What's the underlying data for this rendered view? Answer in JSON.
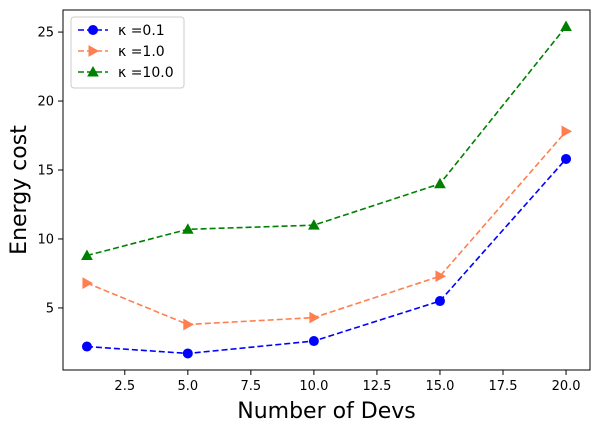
{
  "chart_data": {
    "type": "line",
    "title": "",
    "xlabel": "Number of Devs",
    "ylabel": "Energy cost",
    "xlim": [
      0.05,
      20.95
    ],
    "ylim": [
      0.5,
      26.6
    ],
    "grid": false,
    "legend_position": "top-left",
    "x": [
      1,
      5,
      10,
      15,
      20
    ],
    "xticks": [
      "2.5",
      "5.0",
      "7.5",
      "10.0",
      "12.5",
      "15.0",
      "17.5",
      "20.0"
    ],
    "xtick_values": [
      2.5,
      5.0,
      7.5,
      10.0,
      12.5,
      15.0,
      17.5,
      20.0
    ],
    "yticks": [
      "5",
      "10",
      "15",
      "20",
      "25"
    ],
    "ytick_values": [
      5,
      10,
      15,
      20,
      25
    ],
    "series": [
      {
        "name": "κ =0.1",
        "color": "#0000ff",
        "marker": "circle",
        "line_style": "dashed",
        "values": [
          2.2,
          1.7,
          2.6,
          5.5,
          15.8
        ]
      },
      {
        "name": "κ =1.0",
        "color": "#ff7f50",
        "marker": "triangle-right",
        "line_style": "dashed",
        "values": [
          6.8,
          3.8,
          4.3,
          7.3,
          17.8
        ]
      },
      {
        "name": "κ =10.0",
        "color": "#008000",
        "marker": "triangle-up",
        "line_style": "dashed",
        "values": [
          8.8,
          10.7,
          11.0,
          14.0,
          25.4
        ]
      }
    ]
  }
}
